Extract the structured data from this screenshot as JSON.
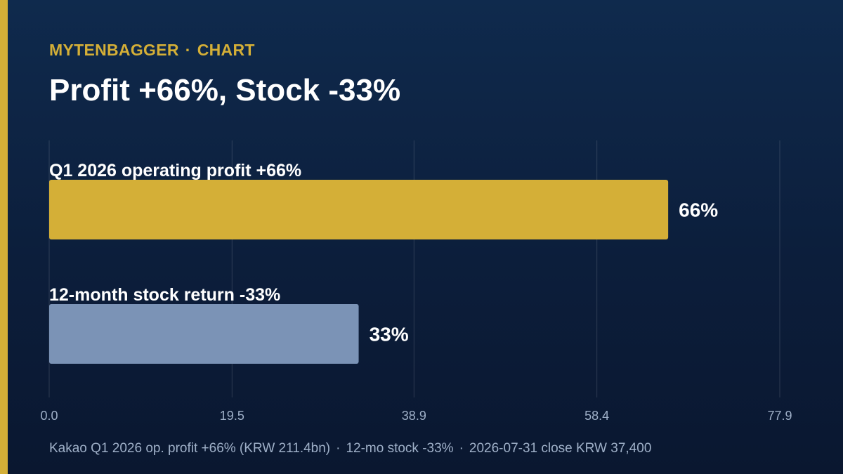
{
  "brand": {
    "name": "MYTENBAGGER",
    "separator": "·",
    "section": "CHART"
  },
  "title": "Profit +66%, Stock -33%",
  "chart_data": {
    "type": "bar",
    "orientation": "horizontal",
    "categories": [
      "Q1 2026 operating profit +66%",
      "12-month stock return -33%"
    ],
    "values": [
      66,
      33
    ],
    "value_labels": [
      "66%",
      "33%"
    ],
    "colors": [
      "#d4af37",
      "#7b93b6"
    ],
    "xlim": [
      0,
      77.9
    ],
    "xticks": [
      0.0,
      19.5,
      38.9,
      58.4,
      77.9
    ],
    "xtick_labels": [
      "0.0",
      "19.5",
      "38.9",
      "58.4",
      "77.9"
    ],
    "grid": "vertical",
    "title": "Profit +66%, Stock -33%",
    "xlabel": "",
    "ylabel": ""
  },
  "footer": {
    "items": [
      "Kakao Q1 2026 op. profit +66% (KRW 211.4bn)",
      "12-mo stock -33%",
      "2026-07-31 close KRW 37,400"
    ],
    "separator": "·"
  },
  "colors": {
    "accent": "#d4af37",
    "secondary_bar": "#7b93b6",
    "background": "#0c1e3b",
    "muted_text": "#9fb0c8"
  }
}
